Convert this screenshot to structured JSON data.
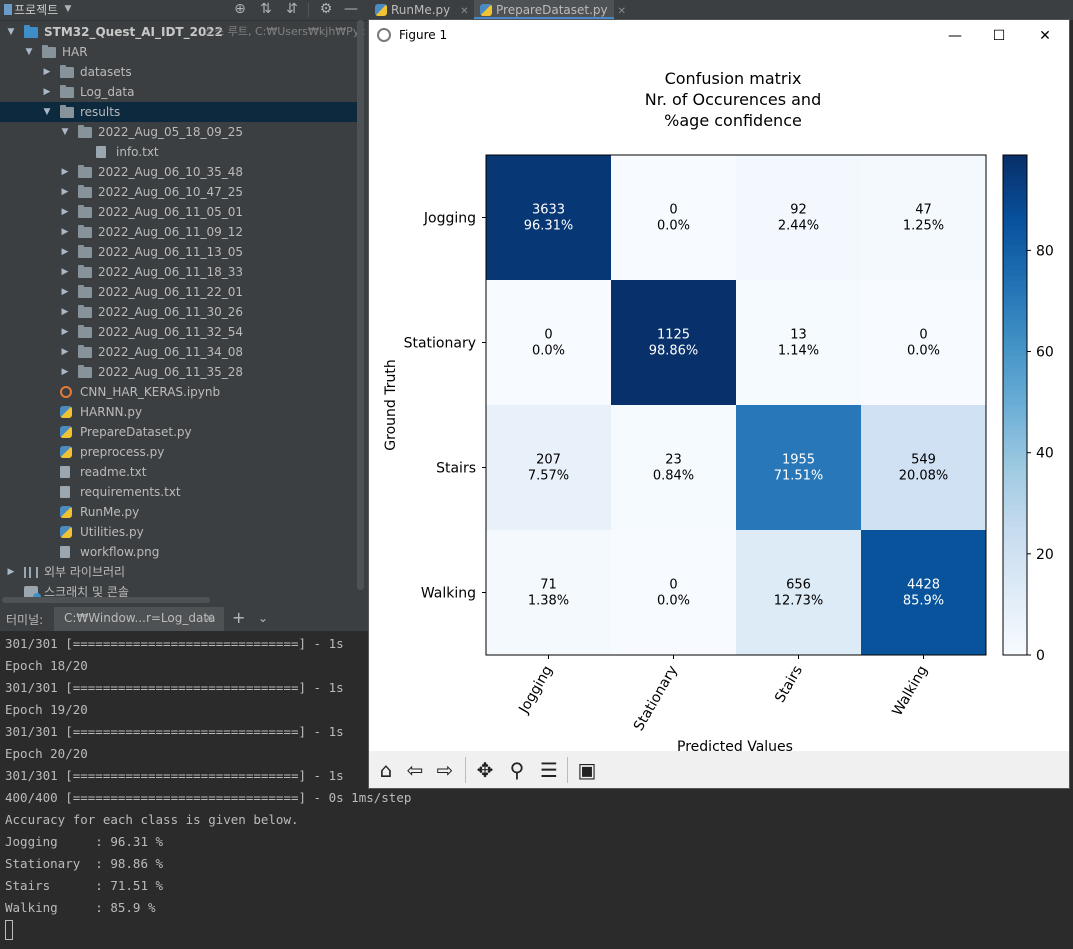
{
  "project_panel": {
    "title": "프로젝트",
    "tree": [
      {
        "label": "STM32_Quest_AI_IDT_2022",
        "hint": "소스 루트, C:₩Users₩kjh₩Pyc",
        "type": "root",
        "arrow": "open",
        "depth": 0
      },
      {
        "label": "HAR",
        "type": "folder",
        "arrow": "open",
        "depth": 1
      },
      {
        "label": "datasets",
        "type": "folder",
        "arrow": "closed",
        "depth": 2
      },
      {
        "label": "Log_data",
        "type": "folder",
        "arrow": "closed",
        "depth": 2
      },
      {
        "label": "results",
        "type": "folder",
        "arrow": "open",
        "depth": 2,
        "selected": true
      },
      {
        "label": "2022_Aug_05_18_09_25",
        "type": "folder",
        "arrow": "open",
        "depth": 3
      },
      {
        "label": "info.txt",
        "type": "file",
        "depth": 4
      },
      {
        "label": "2022_Aug_06_10_35_48",
        "type": "folder",
        "arrow": "closed",
        "depth": 3
      },
      {
        "label": "2022_Aug_06_10_47_25",
        "type": "folder",
        "arrow": "closed",
        "depth": 3
      },
      {
        "label": "2022_Aug_06_11_05_01",
        "type": "folder",
        "arrow": "closed",
        "depth": 3
      },
      {
        "label": "2022_Aug_06_11_09_12",
        "type": "folder",
        "arrow": "closed",
        "depth": 3
      },
      {
        "label": "2022_Aug_06_11_13_05",
        "type": "folder",
        "arrow": "closed",
        "depth": 3
      },
      {
        "label": "2022_Aug_06_11_18_33",
        "type": "folder",
        "arrow": "closed",
        "depth": 3
      },
      {
        "label": "2022_Aug_06_11_22_01",
        "type": "folder",
        "arrow": "closed",
        "depth": 3
      },
      {
        "label": "2022_Aug_06_11_30_26",
        "type": "folder",
        "arrow": "closed",
        "depth": 3
      },
      {
        "label": "2022_Aug_06_11_32_54",
        "type": "folder",
        "arrow": "closed",
        "depth": 3
      },
      {
        "label": "2022_Aug_06_11_34_08",
        "type": "folder",
        "arrow": "closed",
        "depth": 3
      },
      {
        "label": "2022_Aug_06_11_35_28",
        "type": "folder",
        "arrow": "closed",
        "depth": 3
      },
      {
        "label": "CNN_HAR_KERAS.ipynb",
        "type": "notebook",
        "depth": 2
      },
      {
        "label": "HARNN.py",
        "type": "python",
        "depth": 2
      },
      {
        "label": "PrepareDataset.py",
        "type": "python",
        "depth": 2
      },
      {
        "label": "preprocess.py",
        "type": "python",
        "depth": 2
      },
      {
        "label": "readme.txt",
        "type": "file",
        "depth": 2
      },
      {
        "label": "requirements.txt",
        "type": "file",
        "depth": 2
      },
      {
        "label": "RunMe.py",
        "type": "python",
        "depth": 2
      },
      {
        "label": "Utilities.py",
        "type": "python",
        "depth": 2
      },
      {
        "label": "workflow.png",
        "type": "file",
        "depth": 2
      },
      {
        "label": "외부 라이브러리",
        "type": "library",
        "arrow": "closed",
        "depth": 0
      },
      {
        "label": "스크래치 및 콘솔",
        "type": "scratch",
        "depth": 0
      }
    ]
  },
  "editor_tabs": [
    {
      "label": "RunMe.py",
      "active": false
    },
    {
      "label": "PrepareDataset.py",
      "active": true
    }
  ],
  "terminal": {
    "label": "터미널:",
    "tab_label": "C:₩Window...r=Log_data",
    "lines": [
      "301/301 [==============================] - 1s",
      "Epoch 18/20",
      "301/301 [==============================] - 1s",
      "Epoch 19/20",
      "301/301 [==============================] - 1s",
      "Epoch 20/20",
      "301/301 [==============================] - 1s",
      "400/400 [==============================] - 0s 1ms/step",
      "Accuracy for each class is given below.",
      "Jogging     : 96.31 %",
      "Stationary  : 98.86 %",
      "Stairs      : 71.51 %",
      "Walking     : 85.9 %"
    ]
  },
  "figure": {
    "window_title": "Figure 1",
    "toolbar": [
      "home-icon",
      "back-icon",
      "forward-icon",
      "pan-icon",
      "zoom-icon",
      "configure-subplots-icon",
      "save-icon"
    ]
  },
  "chart_data": {
    "type": "heatmap",
    "title": [
      "Confusion matrix",
      "Nr. of Occurences and",
      "%age confidence"
    ],
    "xlabel": "Predicted Values",
    "ylabel": "Ground Truth",
    "x_categories": [
      "Jogging",
      "Stationary",
      "Stairs",
      "Walking"
    ],
    "y_categories": [
      "Jogging",
      "Stationary",
      "Stairs",
      "Walking"
    ],
    "counts": [
      [
        3633,
        0,
        92,
        47
      ],
      [
        0,
        1125,
        13,
        0
      ],
      [
        207,
        23,
        1955,
        549
      ],
      [
        71,
        0,
        656,
        4428
      ]
    ],
    "percent_labels": [
      [
        "96.31%",
        "0.0%",
        "2.44%",
        "1.25%"
      ],
      [
        "0.0%",
        "98.86%",
        "1.14%",
        "0.0%"
      ],
      [
        "7.57%",
        "0.84%",
        "71.51%",
        "20.08%"
      ],
      [
        "1.38%",
        "0.0%",
        "12.73%",
        "85.9%"
      ]
    ],
    "percentages": [
      [
        96.31,
        0.0,
        2.44,
        1.25
      ],
      [
        0.0,
        98.86,
        1.14,
        0.0
      ],
      [
        7.57,
        0.84,
        71.51,
        20.08
      ],
      [
        1.38,
        0.0,
        12.73,
        85.9
      ]
    ],
    "colorbar": {
      "ticks": [
        0,
        20,
        40,
        60,
        80
      ],
      "vmin": 0,
      "vmax": 98.86,
      "cmap": "Blues"
    }
  }
}
